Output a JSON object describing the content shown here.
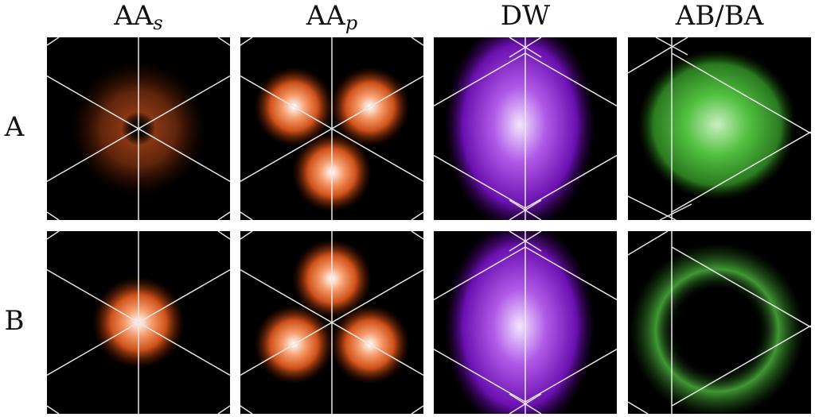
{
  "columns": [
    {
      "label": "AA",
      "subscript": "s"
    },
    {
      "label": "AA",
      "subscript": "p"
    },
    {
      "label": "DW"
    },
    {
      "label": "AB/BA"
    }
  ],
  "rows": [
    "A",
    "B"
  ]
}
